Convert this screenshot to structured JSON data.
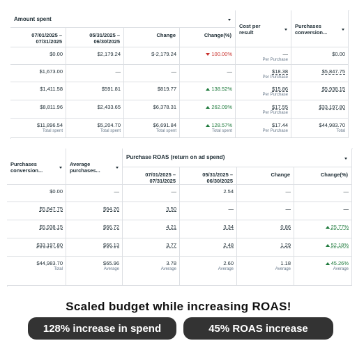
{
  "top_table": {
    "columns": [
      {
        "group": "Amount spent",
        "columns": [
          {
            "lines": [
              "07/01/2025 –",
              "07/31/2025"
            ]
          },
          {
            "lines": [
              "05/31/2025 –",
              "06/30/2025"
            ]
          },
          {
            "lines": [
              "Change"
            ]
          },
          {
            "lines": [
              "Change(%)"
            ]
          }
        ]
      },
      {
        "lines": [
          "Cost per",
          "result"
        ]
      },
      {
        "lines": [
          "Purchases",
          "conversion..."
        ]
      }
    ],
    "rows": [
      [
        {
          "text": "$0.00"
        },
        {
          "text": "$2,179.24"
        },
        {
          "text": "$-2,179.24"
        },
        {
          "text": "100.00%",
          "trend": "down"
        },
        {
          "text": "—",
          "sub": "Per Purchase"
        },
        {
          "text": "$0.00"
        }
      ],
      [
        {
          "text": "$1,673.00"
        },
        {
          "text": "—"
        },
        {
          "text": "—"
        },
        {
          "text": "—"
        },
        {
          "text": "$18.38",
          "sub": "Per Purchase",
          "link": true
        },
        {
          "text": "$5,847.75",
          "link": true
        }
      ],
      [
        {
          "text": "$1,411.58"
        },
        {
          "text": "$591.81"
        },
        {
          "text": "$819.77"
        },
        {
          "text": "138.52%",
          "trend": "up"
        },
        {
          "text": "$15.86",
          "sub": "Per Purchase",
          "link": true
        },
        {
          "text": "$5,938.15",
          "link": true
        }
      ],
      [
        {
          "text": "$8,811.96"
        },
        {
          "text": "$2,433.65"
        },
        {
          "text": "$6,378.31"
        },
        {
          "text": "262.09%",
          "trend": "up"
        },
        {
          "text": "$17.55",
          "sub": "Per Purchase",
          "link": true
        },
        {
          "text": "$33,197.80",
          "link": true
        }
      ],
      [
        {
          "text": "$11,896.54",
          "sub": "Total spent"
        },
        {
          "text": "$5,204.70",
          "sub": "Total spent"
        },
        {
          "text": "$6,691.84",
          "sub": "Total spent"
        },
        {
          "text": "128.57%",
          "sub": "Total spent",
          "trend": "up"
        },
        {
          "text": "$17.44",
          "sub": "Per Purchase"
        },
        {
          "text": "$44,983.70",
          "sub": "Total"
        }
      ]
    ]
  },
  "bottom_table": {
    "columns": [
      {
        "lines": [
          "Purchases",
          "conversion..."
        ]
      },
      {
        "lines": [
          "Average",
          "purchases..."
        ]
      },
      {
        "group": "Purchase ROAS (return on ad spend)",
        "columns": [
          {
            "lines": [
              "07/01/2025 –",
              "07/31/2025"
            ]
          },
          {
            "lines": [
              "05/31/2025 –",
              "06/30/2025"
            ]
          },
          {
            "lines": [
              "Change"
            ]
          },
          {
            "lines": [
              "Change(%)"
            ]
          }
        ]
      }
    ],
    "rows": [
      [
        {
          "text": "$0.00"
        },
        {
          "text": "—"
        },
        {
          "text": "—"
        },
        {
          "text": "2.54"
        },
        {
          "text": "—"
        },
        {
          "text": "—"
        }
      ],
      [
        {
          "text": "$5,847.75",
          "link": true
        },
        {
          "text": "$64.26",
          "link": true
        },
        {
          "text": "3.50",
          "link": true
        },
        {
          "text": "—"
        },
        {
          "text": "—"
        },
        {
          "text": "—"
        }
      ],
      [
        {
          "text": "$5,938.15",
          "link": true
        },
        {
          "text": "$66.72",
          "link": true
        },
        {
          "text": "4.21",
          "link": true
        },
        {
          "text": "3.34",
          "link": true
        },
        {
          "text": "0.86",
          "link": true
        },
        {
          "text": "25.77%",
          "trend": "up",
          "link": true
        }
      ],
      [
        {
          "text": "$33,197.80",
          "link": true
        },
        {
          "text": "$66.13",
          "link": true
        },
        {
          "text": "3.77",
          "link": true
        },
        {
          "text": "2.48",
          "link": true
        },
        {
          "text": "1.29",
          "link": true
        },
        {
          "text": "52.18%",
          "trend": "up",
          "link": true
        }
      ],
      [
        {
          "text": "$44,983.70",
          "sub": "Total"
        },
        {
          "text": "$65.96",
          "sub": "Average"
        },
        {
          "text": "3.78",
          "sub": "Average"
        },
        {
          "text": "2.60",
          "sub": "Average"
        },
        {
          "text": "1.18",
          "sub": "Average"
        },
        {
          "text": "45.26%",
          "sub": "Average",
          "trend": "up"
        }
      ]
    ]
  },
  "caption": {
    "title": "Scaled budget while increasing ROAS!",
    "badges": [
      "128% increase in spend",
      "45% ROAS increase"
    ]
  }
}
